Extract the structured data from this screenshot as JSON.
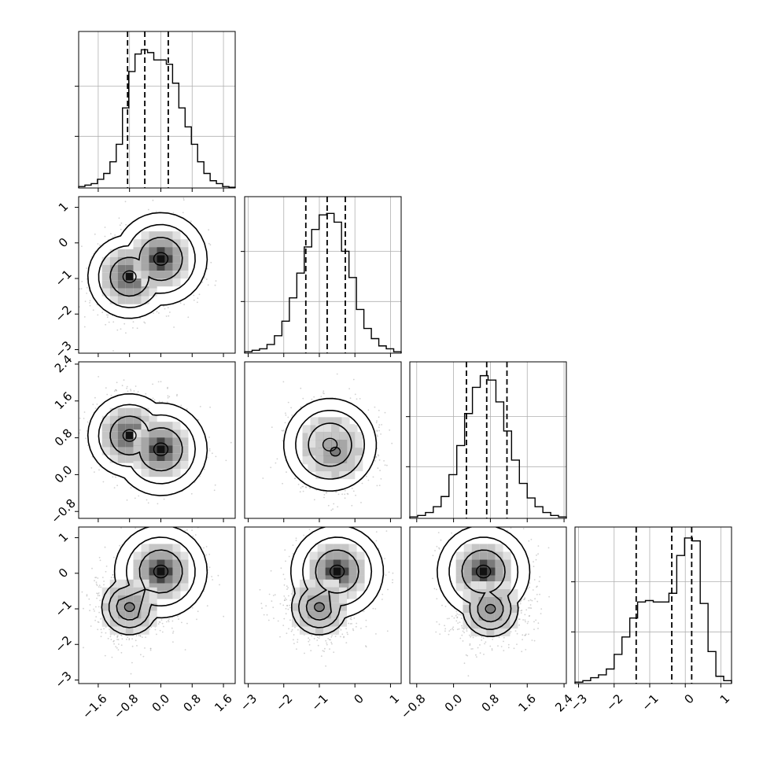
{
  "chart_data": {
    "type": "corner",
    "variables": [
      {
        "ticks": [
          -1.6,
          -0.8,
          0.0,
          0.8,
          1.6
        ],
        "tick_labels": [
          "−1.6",
          "−0.8",
          "0.0",
          "0.8",
          "1.6"
        ],
        "range": [
          -2.1,
          1.9
        ]
      },
      {
        "ticks": [
          -3,
          -2,
          -1,
          0,
          1
        ],
        "tick_labels": [
          "−3",
          "−2",
          "−1",
          "0",
          "1"
        ],
        "range": [
          -3.1,
          1.3
        ]
      },
      {
        "ticks": [
          -0.8,
          0.0,
          0.8,
          1.6,
          2.4
        ],
        "tick_labels": [
          "−0.8",
          "0.0",
          "0.8",
          "1.6",
          "2.4"
        ],
        "range": [
          -0.95,
          2.45
        ]
      },
      {
        "ticks": [
          -3,
          -2,
          -1,
          0,
          1
        ],
        "tick_labels": [
          "−3",
          "−2",
          "−1",
          "0",
          "1"
        ],
        "range": [
          -3.1,
          1.3
        ]
      }
    ],
    "histograms": [
      {
        "variable": 0,
        "bins": [
          -2.1,
          1.9
        ],
        "counts": [
          0.01,
          0.02,
          0.03,
          0.06,
          0.1,
          0.18,
          0.3,
          0.55,
          0.8,
          0.92,
          0.95,
          0.93,
          0.88,
          0.88,
          0.85,
          0.72,
          0.55,
          0.42,
          0.3,
          0.18,
          0.1,
          0.05,
          0.03,
          0.01,
          0.005
        ],
        "quantiles": [
          -0.85,
          -0.41,
          0.19
        ]
      },
      {
        "variable": 1,
        "bins": [
          -3.1,
          1.3
        ],
        "counts": [
          0.01,
          0.02,
          0.03,
          0.06,
          0.12,
          0.22,
          0.38,
          0.55,
          0.73,
          0.85,
          0.95,
          0.96,
          0.9,
          0.7,
          0.52,
          0.3,
          0.17,
          0.1,
          0.05,
          0.03,
          0.01
        ],
        "quantiles": [
          -1.38,
          -0.78,
          -0.27
        ]
      },
      {
        "variable": 2,
        "bins": [
          -0.95,
          2.45
        ],
        "counts": [
          0.01,
          0.02,
          0.04,
          0.08,
          0.15,
          0.3,
          0.5,
          0.72,
          0.9,
          0.98,
          0.95,
          0.8,
          0.6,
          0.4,
          0.24,
          0.14,
          0.08,
          0.04,
          0.02,
          0.01
        ],
        "quantiles": [
          0.28,
          0.72,
          1.16
        ]
      },
      {
        "variable": 3,
        "bins": [
          -3.1,
          1.3
        ],
        "counts": [
          0.01,
          0.02,
          0.04,
          0.06,
          0.1,
          0.2,
          0.32,
          0.45,
          0.56,
          0.57,
          0.56,
          0.56,
          0.62,
          0.88,
          1.0,
          0.98,
          0.55,
          0.22,
          0.05,
          0.02
        ],
        "quantiles": [
          -1.38,
          -0.38,
          0.18
        ]
      }
    ],
    "pairs": [
      {
        "row": 1,
        "col": 0,
        "modes": [
          {
            "x": -0.8,
            "y": -0.95,
            "w": 0.9
          },
          {
            "x": 0.0,
            "y": -0.45,
            "w": 1.0
          }
        ]
      },
      {
        "row": 2,
        "col": 0,
        "modes": [
          {
            "x": -0.8,
            "y": 0.85,
            "w": 0.9
          },
          {
            "x": 0.0,
            "y": 0.55,
            "w": 1.0
          }
        ]
      },
      {
        "row": 2,
        "col": 1,
        "modes": [
          {
            "x": -0.7,
            "y": 0.65,
            "w": 1.0
          },
          {
            "x": -0.55,
            "y": 0.5,
            "w": 0.6
          }
        ]
      },
      {
        "row": 3,
        "col": 0,
        "modes": [
          {
            "x": 0.0,
            "y": 0.05,
            "w": 1.0
          },
          {
            "x": -0.8,
            "y": -0.95,
            "w": 0.6
          }
        ]
      },
      {
        "row": 3,
        "col": 1,
        "modes": [
          {
            "x": -0.5,
            "y": 0.05,
            "w": 1.0
          },
          {
            "x": -1.0,
            "y": -0.95,
            "w": 0.6
          }
        ]
      },
      {
        "row": 3,
        "col": 2,
        "modes": [
          {
            "x": 0.65,
            "y": 0.05,
            "w": 1.0
          },
          {
            "x": 0.8,
            "y": -1.0,
            "w": 0.6
          }
        ]
      }
    ],
    "grid": true,
    "legend": "none"
  }
}
